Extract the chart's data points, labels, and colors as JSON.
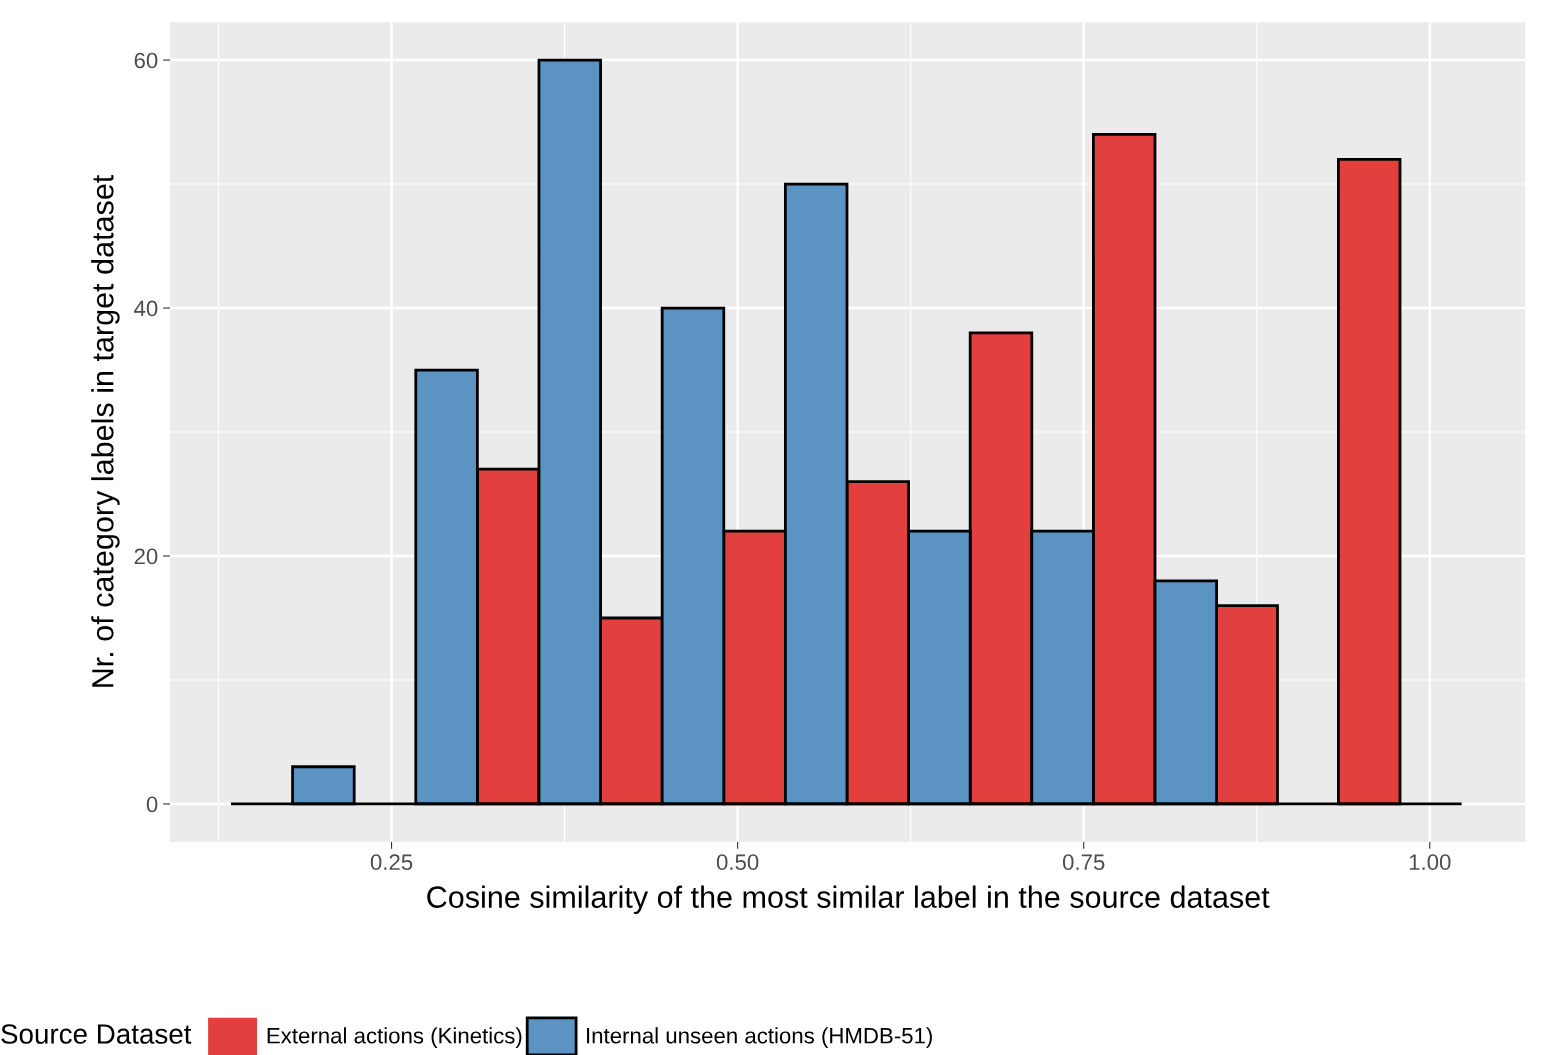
{
  "chart_data": {
    "type": "histogram",
    "xlabel": "Cosine similarity of the most similar label in the source dataset",
    "ylabel": "Nr. of category labels in target dataset",
    "legend_title": "Source Dataset",
    "bins": [
      0.134,
      0.223,
      0.312,
      0.401,
      0.49,
      0.579,
      0.668,
      0.757,
      0.846,
      0.934,
      1.023
    ],
    "series": [
      {
        "name": "External actions (Kinetics)",
        "color": "#e2403f",
        "values": [
          0,
          0,
          27,
          15,
          22,
          26,
          38,
          54,
          16,
          52
        ]
      },
      {
        "name": "Internal unseen actions (HMDB-51)",
        "color": "#5b93c3",
        "values": [
          3,
          35,
          60,
          40,
          50,
          22,
          22,
          18,
          0,
          0
        ]
      }
    ],
    "xlim": [
      0.09,
      1.069
    ],
    "ylim": [
      -3.06,
      63.06
    ],
    "xticks": [
      {
        "value": 0.25,
        "label": "0.25"
      },
      {
        "value": 0.5,
        "label": "0.50"
      },
      {
        "value": 0.75,
        "label": "0.75"
      },
      {
        "value": 1.0,
        "label": "1.00"
      }
    ],
    "yticks": [
      0,
      20,
      40,
      60
    ],
    "grid": true,
    "legend": "bottom"
  }
}
